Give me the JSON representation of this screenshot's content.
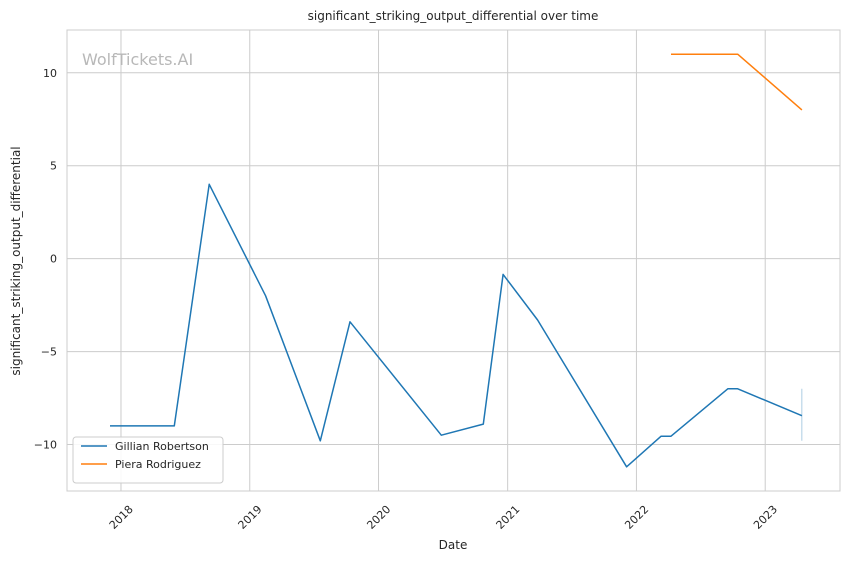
{
  "chart_data": {
    "type": "line",
    "title": "significant_striking_output_differential over time",
    "xlabel": "Date",
    "ylabel": "significant_striking_output_differential",
    "watermark": "WolfTickets.AI",
    "x_axis_type": "date",
    "xlim": [
      "2017-08-01",
      "2023-08-01"
    ],
    "ylim": [
      -12.5,
      12.3
    ],
    "x_ticks": [
      {
        "date": "2018-01-01",
        "label": "2018"
      },
      {
        "date": "2019-01-01",
        "label": "2019"
      },
      {
        "date": "2020-01-01",
        "label": "2020"
      },
      {
        "date": "2021-01-01",
        "label": "2021"
      },
      {
        "date": "2022-01-01",
        "label": "2022"
      },
      {
        "date": "2023-01-01",
        "label": "2023"
      }
    ],
    "y_ticks": [
      {
        "value": 10,
        "label": "10"
      },
      {
        "value": 5,
        "label": "5"
      },
      {
        "value": 0,
        "label": "0"
      },
      {
        "value": -5,
        "label": "−5"
      },
      {
        "value": -10,
        "label": "−10"
      }
    ],
    "grid": true,
    "legend_position": "lower-left",
    "series": [
      {
        "name": "Gillian Robertson",
        "color": "#1f77b4",
        "points": [
          {
            "x": "2017-12-01",
            "y": -9.0
          },
          {
            "x": "2018-06-01",
            "y": -9.0
          },
          {
            "x": "2018-09-08",
            "y": 4.0
          },
          {
            "x": "2019-02-15",
            "y": -2.0
          },
          {
            "x": "2019-07-20",
            "y": -9.8
          },
          {
            "x": "2019-10-12",
            "y": -3.4
          },
          {
            "x": "2020-06-27",
            "y": -9.5
          },
          {
            "x": "2020-10-24",
            "y": -8.9
          },
          {
            "x": "2020-12-19",
            "y": -0.85
          },
          {
            "x": "2021-03-27",
            "y": -3.3
          },
          {
            "x": "2021-12-04",
            "y": -11.2
          },
          {
            "x": "2022-03-12",
            "y": -9.55
          },
          {
            "x": "2022-04-09",
            "y": -9.55
          },
          {
            "x": "2022-09-17",
            "y": -7.0
          },
          {
            "x": "2022-10-15",
            "y": -7.0
          },
          {
            "x": "2023-04-15",
            "y": -8.45
          }
        ]
      },
      {
        "name": "Piera Rodriguez",
        "color": "#ff7f0e",
        "points": [
          {
            "x": "2022-04-09",
            "y": 11.0
          },
          {
            "x": "2022-10-15",
            "y": 11.0
          },
          {
            "x": "2023-04-15",
            "y": 8.0
          }
        ]
      }
    ],
    "annotation_line": {
      "x": "2023-04-15",
      "y_from": -7.0,
      "y_to": -9.8,
      "color": "#1f77b4"
    }
  }
}
